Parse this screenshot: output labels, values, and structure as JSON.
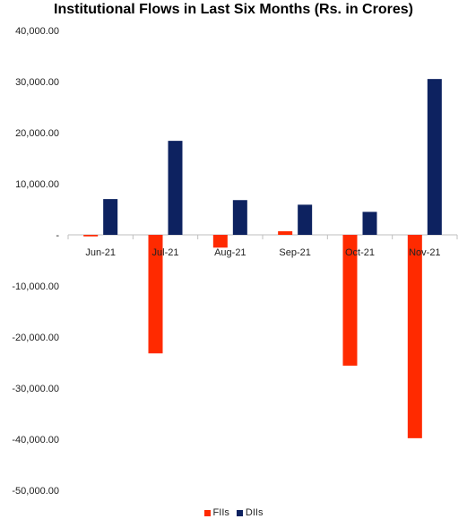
{
  "chart_data": {
    "type": "bar",
    "title": "Institutional Flows in Last Six Months (Rs. in Crores)",
    "categories": [
      "Jun-21",
      "Jul-21",
      "Aug-21",
      "Sep-21",
      "Oct-21",
      "Nov-21"
    ],
    "series": [
      {
        "name": "FIIs",
        "color": "#ff2a00",
        "values": [
          -300,
          -23200,
          -2500,
          700,
          -25600,
          -39800
        ]
      },
      {
        "name": "DIIs",
        "color": "#0d2260",
        "values": [
          7000,
          18400,
          6800,
          5900,
          4500,
          30500
        ]
      }
    ],
    "ylim": [
      -50000,
      40000
    ],
    "yticks": [
      40000,
      30000,
      20000,
      10000,
      0,
      -10000,
      -20000,
      -30000,
      -40000,
      -50000
    ],
    "ytick_labels": [
      "40,000.00",
      "30,000.00",
      "20,000.00",
      "10,000.00",
      "-",
      "-10,000.00",
      "-20,000.00",
      "-30,000.00",
      "-40,000.00",
      "-50,000.00"
    ],
    "grid": false,
    "legend_position": "bottom"
  }
}
